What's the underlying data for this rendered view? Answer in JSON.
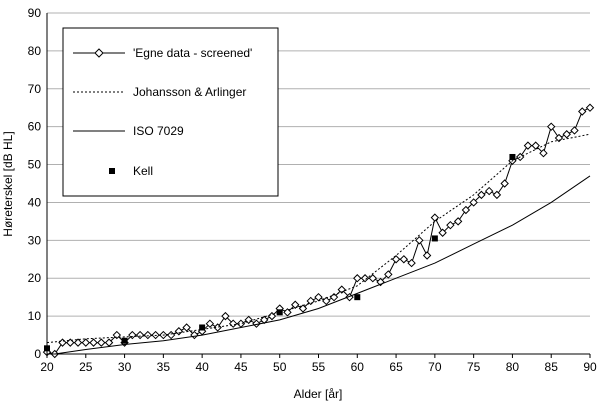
{
  "chart_data": {
    "type": "line",
    "title": "",
    "xlabel": "Alder [år]",
    "ylabel": "Høreterskel [dB HL]",
    "xlim": [
      20,
      90
    ],
    "ylim": [
      0,
      90
    ],
    "xticks": [
      "20",
      "25",
      "30",
      "35",
      "40",
      "45",
      "50",
      "55",
      "60",
      "65",
      "70",
      "75",
      "80",
      "85",
      "90"
    ],
    "yticks": [
      "0",
      "10",
      "20",
      "30",
      "40",
      "50",
      "60",
      "70",
      "80",
      "90"
    ],
    "grid": "horizontal",
    "legend": "top-left",
    "series": [
      {
        "name": "'Egne data - screened'",
        "style": "solid-diamond",
        "color": "#000000",
        "x": [
          20,
          21,
          22,
          23,
          24,
          25,
          26,
          27,
          28,
          29,
          30,
          31,
          32,
          33,
          34,
          35,
          36,
          37,
          38,
          39,
          40,
          41,
          42,
          43,
          44,
          45,
          46,
          47,
          48,
          49,
          50,
          51,
          52,
          53,
          54,
          55,
          56,
          57,
          58,
          59,
          60,
          61,
          62,
          63,
          64,
          65,
          66,
          67,
          68,
          69,
          70,
          71,
          72,
          73,
          74,
          75,
          76,
          77,
          78,
          79,
          80,
          81,
          82,
          83,
          84,
          85,
          86,
          87,
          88,
          89,
          90
        ],
        "y": [
          0.5,
          0,
          3,
          3,
          3,
          3,
          3,
          3,
          3,
          5,
          3,
          5,
          5,
          5,
          5,
          5,
          5,
          6,
          7,
          5,
          6,
          8,
          7,
          10,
          8,
          8,
          9,
          8,
          9,
          10,
          12,
          11,
          13,
          12,
          14,
          15,
          14,
          15,
          17,
          15,
          20,
          20,
          20,
          19,
          21,
          25,
          25,
          24,
          30,
          26,
          36,
          32,
          34,
          35,
          38,
          40,
          42,
          43,
          42,
          45,
          51,
          52,
          55,
          55,
          53,
          60,
          57,
          58,
          59,
          64,
          65
        ]
      },
      {
        "name": "Johansson & Arlinger",
        "style": "dotted",
        "color": "#000000",
        "x": [
          20,
          25,
          30,
          35,
          40,
          45,
          50,
          55,
          60,
          65,
          70,
          75,
          80,
          85,
          90
        ],
        "y": [
          3,
          4,
          4.5,
          5,
          6.5,
          8,
          11,
          14,
          18,
          26,
          35,
          42,
          51,
          56,
          58
        ]
      },
      {
        "name": "ISO 7029",
        "style": "solid",
        "color": "#000000",
        "x": [
          21,
          25,
          30,
          35,
          40,
          45,
          50,
          55,
          60,
          65,
          70,
          75,
          80,
          85,
          90
        ],
        "y": [
          0,
          1.2,
          2.5,
          3.5,
          5,
          7,
          9,
          12,
          16,
          20,
          24,
          29,
          34,
          40,
          47
        ]
      },
      {
        "name": "Kell",
        "style": "square-marker",
        "color": "#000000",
        "x": [
          20,
          30,
          40,
          50,
          60,
          70,
          80
        ],
        "y": [
          1.5,
          3.5,
          7,
          11,
          15,
          30.5,
          52
        ]
      }
    ]
  }
}
